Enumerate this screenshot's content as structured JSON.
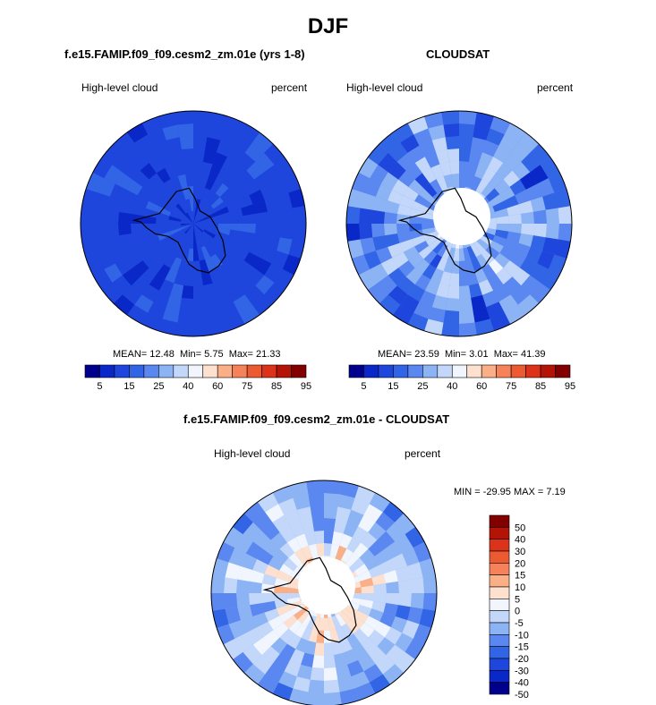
{
  "figure": {
    "title": "DJF"
  },
  "colors": {
    "scale_abs": [
      "#00008c",
      "#0a28c8",
      "#1e46dc",
      "#3264e6",
      "#5a87f0",
      "#8cb4f5",
      "#c3d7fa",
      "#f0f5fe",
      "#fde0cd",
      "#faaf87",
      "#f5825a",
      "#ec5a32",
      "#dc3219",
      "#b41405",
      "#820000"
    ],
    "scale_diff": [
      "#00008c",
      "#0a28c8",
      "#1e46dc",
      "#3264e6",
      "#5a87f0",
      "#8cb4f5",
      "#c3d7fa",
      "#f0f5fe",
      "#fde0cd",
      "#faaf87",
      "#f5825a",
      "#ec5a32",
      "#dc3219",
      "#b41405",
      "#820000"
    ],
    "coastline": "#000000"
  },
  "chart_data": [
    {
      "type": "heatmap",
      "projection": "south-polar stereographic",
      "title": "f.e15.FAMIP.f09_f09.cesm2_zm.01e (yrs 1-8)",
      "variable_label": "High-level cloud",
      "units_label": "percent",
      "stats": {
        "mean_label": "MEAN=",
        "mean": "12.48",
        "min_label": "Min=",
        "min": "5.75",
        "max_label": "Max=",
        "max": "21.33"
      },
      "colorbar": {
        "orientation": "horizontal",
        "tick_labels": [
          "5",
          "15",
          "25",
          "40",
          "60",
          "75",
          "85",
          "95"
        ]
      },
      "field": {
        "base": 12.48,
        "variability": 4,
        "polar_hole": false
      }
    },
    {
      "type": "heatmap",
      "projection": "south-polar stereographic",
      "title": "CLOUDSAT",
      "variable_label": "High-level cloud",
      "units_label": "percent",
      "stats": {
        "mean_label": "MEAN=",
        "mean": "23.59",
        "min_label": "Min=",
        "min": "3.01",
        "max_label": "Max=",
        "max": "41.39"
      },
      "colorbar": {
        "orientation": "horizontal",
        "tick_labels": [
          "5",
          "15",
          "25",
          "40",
          "60",
          "75",
          "85",
          "95"
        ]
      },
      "field": {
        "base": 23.59,
        "variability": 12,
        "polar_hole": true
      }
    },
    {
      "type": "heatmap",
      "projection": "south-polar stereographic",
      "title": "f.e15.FAMIP.f09_f09.cesm2_zm.01e - CLOUDSAT",
      "variable_label": "High-level cloud",
      "units_label": "percent",
      "stats": {
        "min_label": "MIN =",
        "min": "-29.95",
        "max_label": "MAX =",
        "max": "7.19"
      },
      "colorbar": {
        "orientation": "vertical",
        "tick_labels": [
          "50",
          "40",
          "30",
          "20",
          "15",
          "10",
          "5",
          "0",
          "-5",
          "-10",
          "-15",
          "-20",
          "-30",
          "-40",
          "-50"
        ]
      },
      "field": {
        "base": -11,
        "variability": 9,
        "polar_hole": true
      }
    }
  ]
}
